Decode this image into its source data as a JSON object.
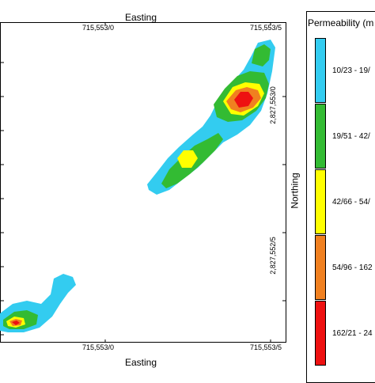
{
  "map": {
    "top_axis_title": "Easting",
    "bottom_axis_title": "Easting",
    "right_axis_title": "Northing",
    "easting_ticks": [
      "715,553/0",
      "715,553/5"
    ],
    "northing_ticks": [
      "2,827,553/0",
      "2,827,552/5"
    ]
  },
  "legend": {
    "title": "Permeability (m",
    "classes": [
      {
        "label": "10/23 - 19/",
        "color": "#33ccf0"
      },
      {
        "label": "19/51 - 42/",
        "color": "#33bb33"
      },
      {
        "label": "42/66 - 54/",
        "color": "#ffff00"
      },
      {
        "label": "54/96 - 162",
        "color": "#f08020"
      },
      {
        "label": "162/21 - 24",
        "color": "#ee1111"
      }
    ]
  }
}
